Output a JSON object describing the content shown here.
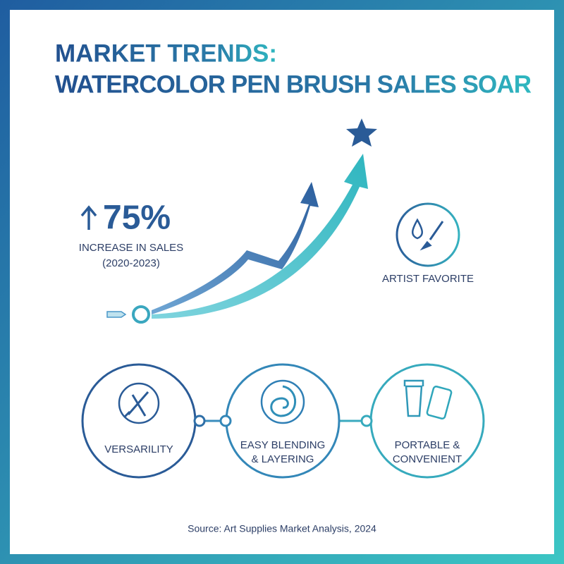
{
  "title": {
    "lines": [
      "MARKET TRENDS:",
      "WATERCOLOR PEN BRUSH SALES SOAR"
    ]
  },
  "stat": {
    "value": "75%",
    "label": "INCREASE IN SALES",
    "period": "(2020-2023)"
  },
  "badge": {
    "label": "ARTIST FAVORITE"
  },
  "features": [
    {
      "lines": [
        "VERSARILITY"
      ]
    },
    {
      "lines": [
        "EASY BLENDING",
        "& LAYERING"
      ]
    },
    {
      "lines": [
        "PORTABLE &",
        "CONVENIENT"
      ]
    }
  ],
  "source": "Source: Art Supplies Market Analysis, 2024"
}
